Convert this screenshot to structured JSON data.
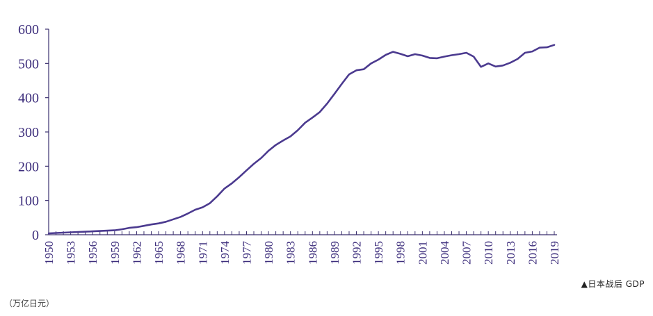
{
  "chart_data": {
    "type": "line",
    "xlim": [
      1950,
      2019
    ],
    "ylim": [
      0,
      600
    ],
    "yticks": [
      0,
      100,
      200,
      300,
      400,
      500,
      600
    ],
    "xticks": [
      1950,
      1953,
      1956,
      1959,
      1962,
      1965,
      1968,
      1971,
      1974,
      1977,
      1980,
      1983,
      1986,
      1989,
      1992,
      1995,
      1998,
      2001,
      2004,
      2007,
      2010,
      2013,
      2016,
      2019
    ],
    "grid": false,
    "line_color": "#4b3a8f",
    "x": [
      1950,
      1951,
      1952,
      1953,
      1954,
      1955,
      1956,
      1957,
      1958,
      1959,
      1960,
      1961,
      1962,
      1963,
      1964,
      1965,
      1966,
      1967,
      1968,
      1969,
      1970,
      1971,
      1972,
      1973,
      1974,
      1975,
      1976,
      1977,
      1978,
      1979,
      1980,
      1981,
      1982,
      1983,
      1984,
      1985,
      1986,
      1987,
      1988,
      1989,
      1990,
      1991,
      1992,
      1993,
      1994,
      1995,
      1996,
      1997,
      1998,
      1999,
      2000,
      2001,
      2002,
      2003,
      2004,
      2005,
      2006,
      2007,
      2008,
      2009,
      2010,
      2011,
      2012,
      2013,
      2014,
      2015,
      2016,
      2017,
      2018,
      2019
    ],
    "y": [
      4,
      5,
      6,
      7,
      8,
      9,
      10,
      11,
      12,
      13,
      16,
      20,
      22,
      26,
      30,
      33,
      38,
      45,
      52,
      62,
      73,
      80,
      92,
      112,
      135,
      150,
      168,
      188,
      207,
      224,
      245,
      262,
      275,
      287,
      305,
      327,
      342,
      358,
      383,
      411,
      440,
      468,
      480,
      483,
      500,
      511,
      525,
      534,
      528,
      521,
      527,
      523,
      516,
      515,
      520,
      524,
      527,
      531,
      520,
      490,
      500,
      491,
      494,
      502,
      513,
      531,
      535,
      546,
      547,
      554
    ]
  },
  "caption": "▲日本战后 GDP",
  "unit_label": "（万亿日元）"
}
